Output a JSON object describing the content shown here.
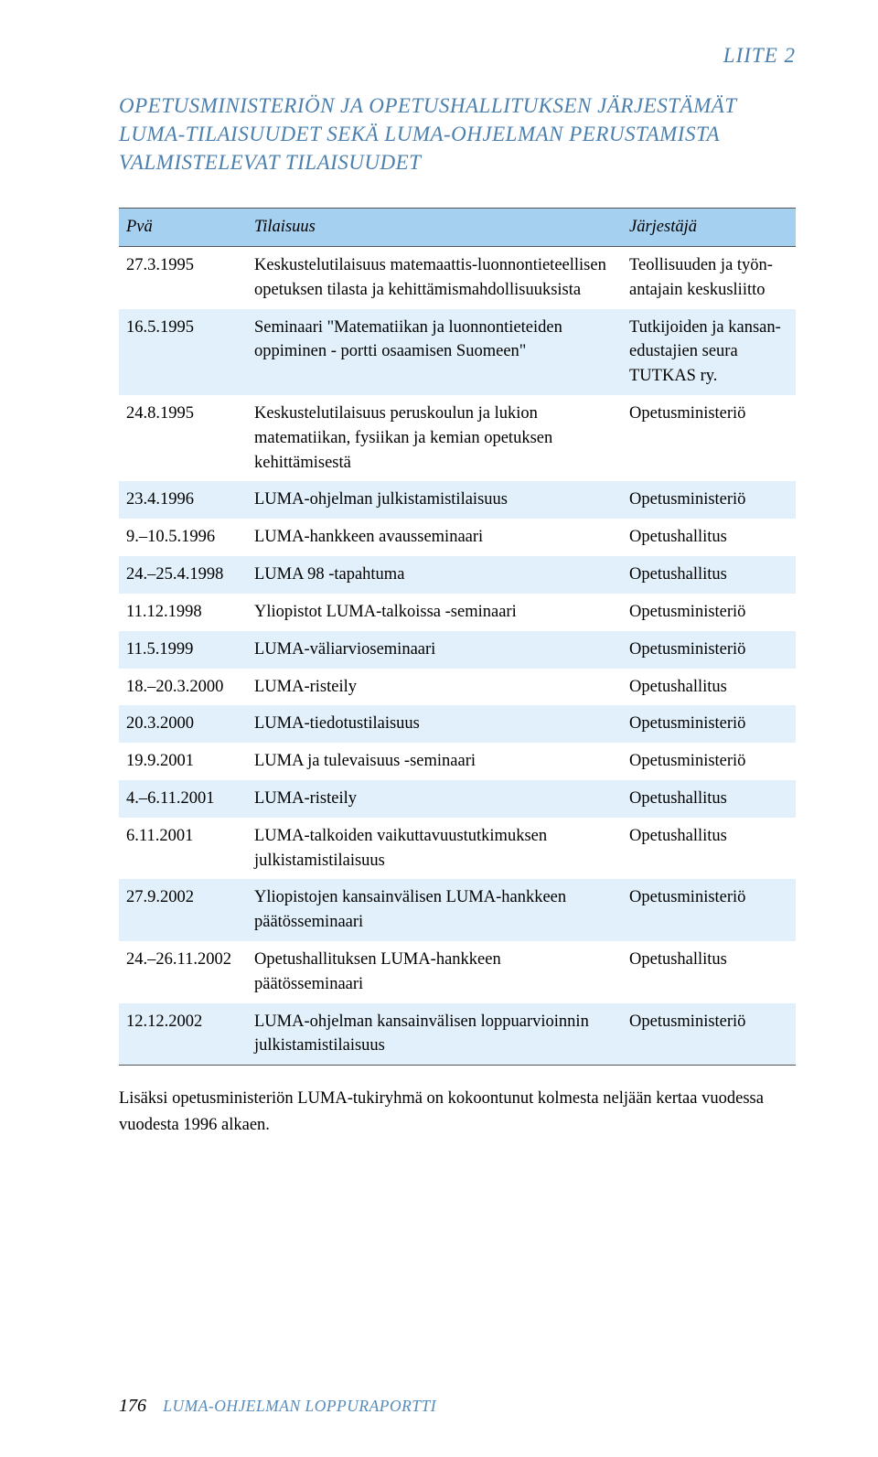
{
  "page": {
    "appendix_label": "LIITE 2",
    "title": "OPETUSMINISTERIÖN JA OPETUSHALLITUKSEN JÄRJESTÄMÄT LUMA-TILAISUUDET SEKÄ LUMA-OHJELMAN PERUSTAMISTA VALMISTELEVAT TILAISUUDET",
    "footnote": "Lisäksi opetusministeriön LUMA-tukiryhmä on kokoontunut kolmesta neljään kertaa vuodessa vuodesta 1996 alkaen.",
    "page_number": "176",
    "publication_title": "LUMA-OHJELMAN LOPPURAPORTTI"
  },
  "colors": {
    "heading": "#4a7fae",
    "header_row_bg": "#a6d0ef",
    "stripe_bg": "#e1f0fa",
    "text": "#000000",
    "rule": "#555555",
    "footer_title": "#558bbb"
  },
  "table": {
    "columns": [
      "Pvä",
      "Tilaisuus",
      "Järjestäjä"
    ],
    "rows": [
      {
        "c1": "27.3.1995",
        "c2": "Keskustelutilaisuus matemaattis-luonnon­tieteellisen opetuksen tilasta ja kehittämis­mahdollisuuksista",
        "c3": "Teollisuuden ja työn­antajain keskusliitto"
      },
      {
        "c1": "16.5.1995",
        "c2": "Seminaari \"Matematiikan ja luonnontieteiden oppiminen - portti osaamisen Suomeen\"",
        "c3": "Tutkijoiden ja kansan­edustajien seura TUTKAS ry."
      },
      {
        "c1": "24.8.1995",
        "c2": "Keskustelutilaisuus peruskoulun ja lukion matematiikan, fysiikan ja kemian opetuksen kehittämisestä",
        "c3": "Opetusministeriö"
      },
      {
        "c1": "23.4.1996",
        "c2": "LUMA-ohjelman julkistamistilaisuus",
        "c3": "Opetusministeriö"
      },
      {
        "c1": "9.–10.5.1996",
        "c2": "LUMA-hankkeen avausseminaari",
        "c3": "Opetushallitus"
      },
      {
        "c1": "24.–25.4.1998",
        "c2": "LUMA 98 -tapahtuma",
        "c3": "Opetushallitus"
      },
      {
        "c1": "11.12.1998",
        "c2": "Yliopistot LUMA-talkoissa -seminaari",
        "c3": "Opetusministeriö"
      },
      {
        "c1": "11.5.1999",
        "c2": "LUMA-väliarvioseminaari",
        "c3": "Opetusministeriö"
      },
      {
        "c1": "18.–20.3.2000",
        "c2": "LUMA-risteily",
        "c3": "Opetushallitus"
      },
      {
        "c1": "20.3.2000",
        "c2": "LUMA-tiedotustilaisuus",
        "c3": "Opetusministeriö"
      },
      {
        "c1": "19.9.2001",
        "c2": "LUMA ja tulevaisuus -seminaari",
        "c3": "Opetusministeriö"
      },
      {
        "c1": "4.–6.11.2001",
        "c2": "LUMA-risteily",
        "c3": "Opetushallitus"
      },
      {
        "c1": "6.11.2001",
        "c2": "LUMA-talkoiden vaikuttavuustutkimuksen julkistamistilaisuus",
        "c3": "Opetushallitus"
      },
      {
        "c1": "27.9.2002",
        "c2": "Yliopistojen kansainvälisen LUMA-hankkeen päätösseminaari",
        "c3": "Opetusministeriö"
      },
      {
        "c1": "24.–26.11.2002",
        "c2": "Opetushallituksen LUMA-hankkeen päätösseminaari",
        "c3": "Opetushallitus"
      },
      {
        "c1": "12.12.2002",
        "c2": "LUMA-ohjelman kansainvälisen loppu­arvioinnin julkistamistilaisuus",
        "c3": "Opetusministeriö"
      }
    ]
  }
}
